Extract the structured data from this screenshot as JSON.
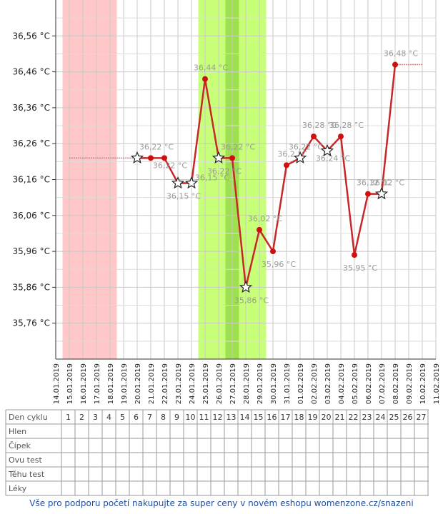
{
  "chart_data": {
    "type": "line",
    "y_tick_labels": [
      "36,56 °C",
      "36,46 °C",
      "36,36 °C",
      "36,26 °C",
      "36,16 °C",
      "36,06 °C",
      "35,96 °C",
      "35,86 °C",
      "35,76 °C"
    ],
    "y_ticks": [
      36.56,
      36.46,
      36.36,
      36.26,
      36.16,
      36.06,
      35.96,
      35.86,
      35.76
    ],
    "ylim": [
      35.66,
      36.66
    ],
    "dates": [
      "14.01.2019",
      "15.01.2019",
      "16.01.2019",
      "17.01.2019",
      "18.01.2019",
      "19.01.2019",
      "20.01.2019",
      "21.01.2019",
      "22.01.2019",
      "23.01.2019",
      "24.01.2019",
      "25.01.2019",
      "26.01.2019",
      "27.01.2019",
      "28.01.2019",
      "29.01.2019",
      "30.01.2019",
      "31.01.2019",
      "01.02.2019",
      "02.02.2019",
      "03.02.2019",
      "04.02.2019",
      "05.02.2019",
      "06.02.2019",
      "07.02.2019",
      "08.02.2019",
      "09.02.2019",
      "10.02.2019",
      "11.02.2019"
    ],
    "menstruation": {
      "from": "15.01.2019",
      "to": "19.01.2019",
      "color": "#ffc7c7"
    },
    "fertile_window": {
      "from": "25.01.2019",
      "to": "30.01.2019",
      "color": "#c8ff78"
    },
    "fertile_peak": {
      "from": "27.01.2019",
      "to": "28.01.2019",
      "color": "#9fe050"
    },
    "coverline_left": {
      "from": "15.01.2019",
      "to": "20.01.2019",
      "value": 36.22
    },
    "coverline_right": {
      "from": "08.02.2019",
      "to": "10.02.2019",
      "value": 36.48
    },
    "series": [
      {
        "color": "#c62828",
        "points": [
          {
            "date": "20.01.2019",
            "value": 36.22,
            "marker": "star",
            "label": ""
          },
          {
            "date": "21.01.2019",
            "value": 36.22,
            "marker": "dot",
            "label": "36,22 °C"
          },
          {
            "date": "22.01.2019",
            "value": 36.22,
            "marker": "dot",
            "label": "36,22 °C"
          },
          {
            "date": "23.01.2019",
            "value": 36.15,
            "marker": "star",
            "label": "36,15 °C"
          },
          {
            "date": "24.01.2019",
            "value": 36.15,
            "marker": "star",
            "label": ""
          },
          {
            "date": "25.01.2019",
            "value": 36.44,
            "marker": "dot",
            "label": "36,44 °C"
          },
          {
            "date": "26.01.2019",
            "value": 36.22,
            "marker": "star",
            "label": "36,22 °C"
          },
          {
            "date": "27.01.2019",
            "value": 36.22,
            "marker": "dot",
            "label": "36,22 °C"
          },
          {
            "date": "28.01.2019",
            "value": 35.86,
            "marker": "star",
            "label": "35,86 °C"
          },
          {
            "date": "29.01.2019",
            "value": 36.02,
            "marker": "dot",
            "label": "36,02 °C"
          },
          {
            "date": "30.01.2019",
            "value": 35.96,
            "marker": "dot",
            "label": "35,96 °C"
          },
          {
            "date": "31.01.2019",
            "value": 36.2,
            "marker": "dot",
            "label": "36,2 °C"
          },
          {
            "date": "01.02.2019",
            "value": 36.22,
            "marker": "star",
            "label": "36,22 °C"
          },
          {
            "date": "02.02.2019",
            "value": 36.28,
            "marker": "dot",
            "label": "36,28 °C"
          },
          {
            "date": "03.02.2019",
            "value": 36.24,
            "marker": "star",
            "label": "36,24 °C"
          },
          {
            "date": "04.02.2019",
            "value": 36.28,
            "marker": "dot",
            "label": "36,28 °C"
          },
          {
            "date": "05.02.2019",
            "value": 35.95,
            "marker": "dot",
            "label": "35,95 °C"
          },
          {
            "date": "06.02.2019",
            "value": 36.12,
            "marker": "dot",
            "label": "36,12 °C"
          },
          {
            "date": "07.02.2019",
            "value": 36.12,
            "marker": "star",
            "label": "36,12 °C"
          },
          {
            "date": "08.02.2019",
            "value": 36.48,
            "marker": "dot",
            "label": "36,48 °C"
          }
        ]
      }
    ],
    "extra_labels": [
      {
        "date": "25.01.2019",
        "value": 36.15,
        "label": "36,15 °C"
      }
    ]
  },
  "table": {
    "header_label": "Den cyklu",
    "cycle_days": [
      "1",
      "2",
      "3",
      "4",
      "5",
      "6",
      "7",
      "8",
      "9",
      "10",
      "11",
      "12",
      "13",
      "14",
      "15",
      "16",
      "17",
      "18",
      "19",
      "20",
      "21",
      "22",
      "23",
      "24",
      "25",
      "26",
      "27"
    ],
    "rows": [
      "Hlen",
      "Čípek",
      "Ovu test",
      "Těhu test",
      "Léky"
    ]
  },
  "footer": "Vše pro podporu početí nakupujte za super ceny v novém eshopu womenzone.cz/snazeni"
}
